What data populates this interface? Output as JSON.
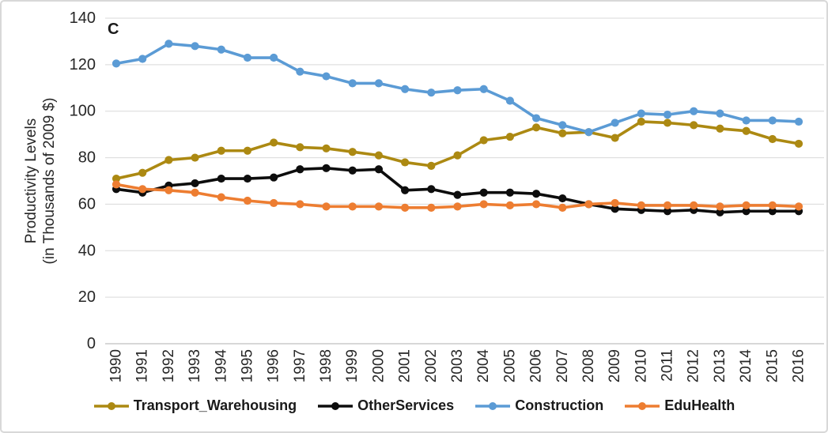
{
  "panel_label": "C",
  "y_axis_title": {
    "line1": "Productivity Levels",
    "line2": "(in Thousands of 2009 $)"
  },
  "chart_data": {
    "type": "line",
    "title": "",
    "xlabel": "",
    "ylabel": "Productivity Levels (in Thousands of 2009 $)",
    "ylim": [
      0,
      140
    ],
    "y_ticks": [
      0,
      20,
      40,
      60,
      80,
      100,
      120,
      140
    ],
    "grid": "horizontal",
    "legend_position": "bottom",
    "categories": [
      "1990",
      "1991",
      "1992",
      "1993",
      "1994",
      "1995",
      "1996",
      "1997",
      "1998",
      "1999",
      "2000",
      "2001",
      "2002",
      "2003",
      "2004",
      "2005",
      "2006",
      "2007",
      "2008",
      "2009",
      "2010",
      "2011",
      "2012",
      "2013",
      "2014",
      "2015",
      "2016"
    ],
    "series": [
      {
        "name": "Transport_Warehousing",
        "color": "#AC8912",
        "values": [
          71,
          73.5,
          79,
          80,
          83,
          83,
          86.5,
          84.5,
          84,
          82.5,
          81,
          78,
          76.5,
          81,
          87.5,
          89,
          93,
          90.5,
          91,
          88.5,
          95.5,
          95,
          94,
          92.5,
          91.5,
          88,
          86
        ]
      },
      {
        "name": "OtherServices",
        "color": "#0d0d0d",
        "values": [
          66.5,
          65,
          68,
          69,
          71,
          71,
          71.5,
          75,
          75.5,
          74.5,
          75,
          66,
          66.5,
          64,
          65,
          65,
          64.5,
          62.5,
          60,
          58,
          57.5,
          57,
          57.5,
          56.5,
          57,
          57,
          57
        ]
      },
      {
        "name": "Construction",
        "color": "#5B9BD5",
        "values": [
          120.5,
          122.5,
          129,
          128,
          126.5,
          123,
          123,
          117,
          115,
          112,
          112,
          109.5,
          108,
          109,
          109.5,
          104.5,
          97,
          94,
          91,
          95,
          99,
          98.5,
          100,
          99,
          96,
          96,
          95.5
        ]
      },
      {
        "name": "EduHealth",
        "color": "#ED7D31",
        "values": [
          68.5,
          66.5,
          66,
          65,
          63,
          61.5,
          60.5,
          60,
          59,
          59,
          59,
          58.5,
          58.5,
          59,
          60,
          59.5,
          60,
          58.5,
          60,
          60.5,
          59.5,
          59.5,
          59.5,
          59,
          59.5,
          59.5,
          59
        ]
      }
    ],
    "style": {
      "gridline_color": "#D9D9D9",
      "axis_line_color": "#BFBFBF",
      "tick_label_color": "#262626"
    }
  }
}
